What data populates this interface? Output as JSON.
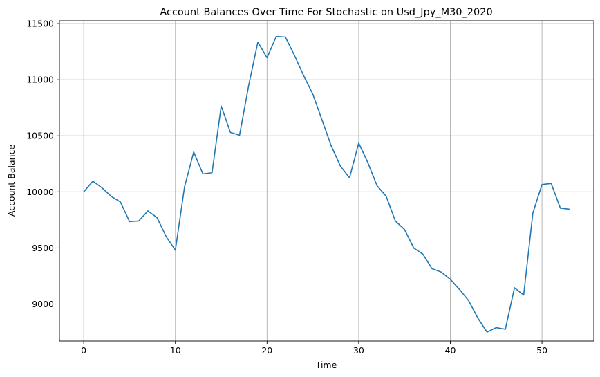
{
  "chart_data": {
    "type": "line",
    "title": "Account Balances Over Time For Stochastic on Usd_Jpy_M30_2020",
    "xlabel": "Time",
    "ylabel": "Account Balance",
    "xlim": [
      -2.65,
      55.65
    ],
    "ylim": [
      8670,
      11525
    ],
    "xticks": [
      0,
      10,
      20,
      30,
      40,
      50
    ],
    "yticks": [
      9000,
      9500,
      10000,
      10500,
      11000,
      11500
    ],
    "grid": true,
    "line_color": "#1f77b4",
    "series": [
      {
        "x": [
          0,
          1,
          2,
          3,
          4,
          5,
          6,
          7,
          8,
          9,
          10,
          11,
          12,
          13,
          14,
          15,
          16,
          17,
          18,
          19,
          20,
          21,
          22,
          23,
          24,
          25,
          26,
          27,
          28,
          29,
          30,
          31,
          32,
          33,
          34,
          35,
          36,
          37,
          38,
          39,
          40,
          41,
          42,
          43,
          44,
          45,
          46,
          47,
          48,
          49,
          50,
          51,
          52,
          53
        ],
        "values": [
          10000,
          10095,
          10035,
          9960,
          9910,
          9735,
          9740,
          9830,
          9770,
          9600,
          9480,
          10045,
          10355,
          10160,
          10170,
          10765,
          10530,
          10505,
          10950,
          11335,
          11195,
          11385,
          11380,
          11215,
          11035,
          10870,
          10640,
          10410,
          10230,
          10125,
          10435,
          10260,
          10055,
          9960,
          9740,
          9665,
          9500,
          9445,
          9315,
          9285,
          9220,
          9130,
          9030,
          8875,
          8750,
          8790,
          8775,
          9145,
          9080,
          9810,
          10065,
          10075,
          9855,
          9845
        ]
      }
    ]
  }
}
